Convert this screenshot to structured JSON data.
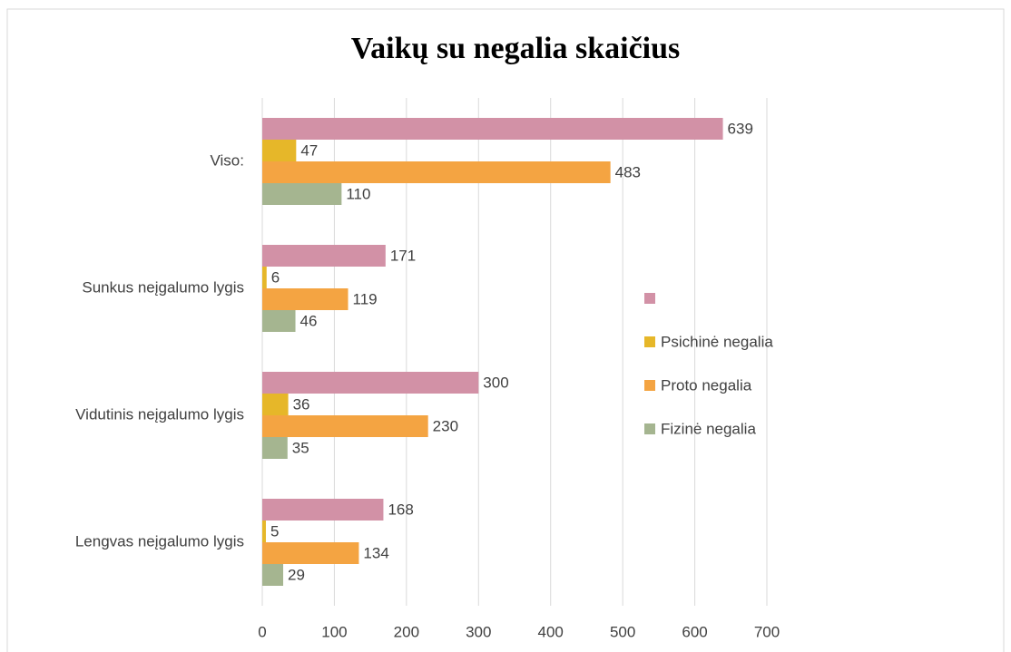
{
  "chart_data": {
    "type": "bar",
    "orientation": "horizontal",
    "title": "Vaikų su negalia skaičius",
    "categories": [
      "Viso:",
      "Sunkus neįgalumo lygis",
      "Vidutinis neįgalumo lygis",
      "Lengvas neįgalumo lygis"
    ],
    "series": [
      {
        "color": "#d291a6",
        "values": [
          639,
          171,
          300,
          168
        ]
      },
      {
        "name": "Psichinė negalia",
        "color": "#e6b729",
        "values": [
          47,
          6,
          36,
          5
        ]
      },
      {
        "name": "Proto negalia",
        "color": "#f4a442",
        "values": [
          483,
          119,
          230,
          134
        ]
      },
      {
        "name": "Fizinė negalia",
        "color": "#a5b590",
        "values": [
          110,
          46,
          35,
          29
        ]
      }
    ],
    "xlim": [
      0,
      700
    ],
    "xticks": [
      0,
      100,
      200,
      300,
      400,
      500,
      600,
      700
    ],
    "grid": true,
    "legend": "right"
  }
}
